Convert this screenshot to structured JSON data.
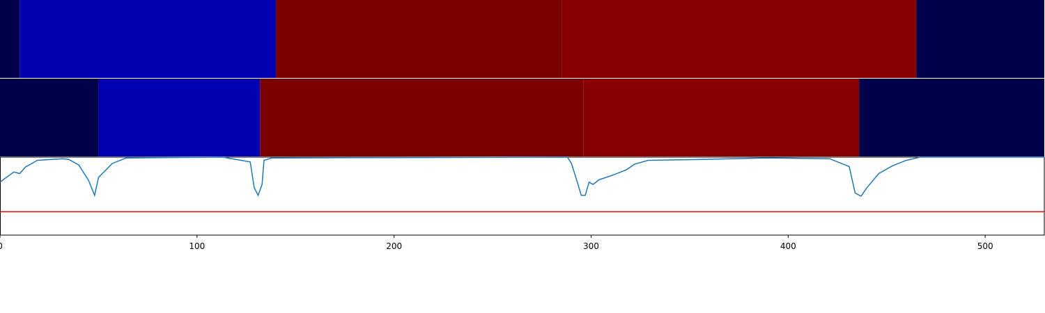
{
  "chart_data": {
    "type": "segments-line",
    "xlim": [
      0,
      530
    ],
    "xticks": [
      0,
      100,
      200,
      300,
      400,
      500
    ],
    "strips": [
      {
        "segments": [
          {
            "start": 0,
            "end": 10,
            "color": "#00004a"
          },
          {
            "start": 10,
            "end": 140,
            "color": "#0000b0"
          },
          {
            "start": 140,
            "end": 285,
            "color": "#7b0000"
          },
          {
            "start": 285,
            "end": 465,
            "color": "#880000"
          },
          {
            "start": 465,
            "end": 530,
            "color": "#00004a"
          }
        ]
      },
      {
        "segments": [
          {
            "start": 0,
            "end": 50,
            "color": "#00004a"
          },
          {
            "start": 50,
            "end": 132,
            "color": "#0000b0"
          },
          {
            "start": 132,
            "end": 296,
            "color": "#7b0000"
          },
          {
            "start": 296,
            "end": 436,
            "color": "#880000"
          },
          {
            "start": 436,
            "end": 530,
            "color": "#00004a"
          }
        ]
      }
    ],
    "line": {
      "color": "#1f77b4",
      "x": [
        0,
        7,
        10,
        13,
        19,
        32,
        35,
        40,
        45,
        48,
        50,
        57,
        64,
        113,
        127,
        129,
        131,
        133,
        134,
        138,
        288,
        290,
        293,
        295,
        297,
        299,
        301,
        304,
        311,
        318,
        322,
        329,
        354,
        389,
        421,
        431,
        434,
        437,
        440,
        446,
        453,
        460,
        467,
        530
      ],
      "values": [
        0.68,
        0.81,
        0.79,
        0.875,
        0.96,
        0.98,
        0.97,
        0.9,
        0.7,
        0.51,
        0.74,
        0.92,
        0.99,
        1.0,
        0.94,
        0.61,
        0.51,
        0.65,
        0.96,
        0.99,
        1.0,
        0.92,
        0.68,
        0.51,
        0.51,
        0.68,
        0.65,
        0.71,
        0.77,
        0.84,
        0.91,
        0.96,
        0.97,
        0.99,
        0.98,
        0.88,
        0.54,
        0.5,
        0.61,
        0.79,
        0.89,
        0.96,
        1.0,
        1.0
      ]
    },
    "ylim": [
      0,
      1
    ],
    "threshold": {
      "value": 0.3,
      "color": "#e00000"
    }
  }
}
